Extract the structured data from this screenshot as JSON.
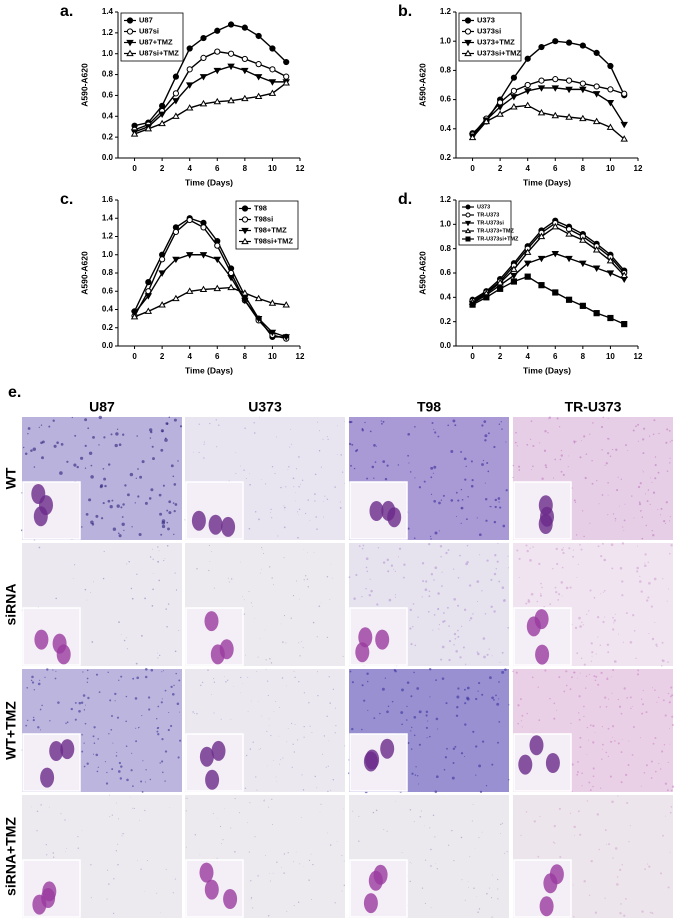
{
  "chart_data": [
    {
      "type": "line",
      "panel_label": "a.",
      "xlabel": "Time (Days)",
      "ylabel": "A590-A620",
      "x": [
        0,
        1,
        2,
        3,
        4,
        5,
        6,
        7,
        8,
        9,
        10,
        11
      ],
      "xlim": [
        -1.2,
        12
      ],
      "xticks": [
        0,
        2,
        4,
        6,
        8,
        10,
        12
      ],
      "ylim": [
        0,
        1.4
      ],
      "yticks": [
        {
          "value": 0,
          "label": "0.0"
        },
        0.2,
        0.4,
        0.6,
        0.8,
        {
          "value": 1,
          "label": "1.0"
        },
        1.2,
        1.4
      ],
      "legend": "top-left",
      "grid": false,
      "series": [
        {
          "name": "U87",
          "color": "#000000",
          "marker": "circle-filled",
          "values": [
            0.31,
            0.34,
            0.5,
            0.78,
            1.05,
            1.15,
            1.22,
            1.28,
            1.25,
            1.17,
            1.05,
            0.92
          ]
        },
        {
          "name": "U87si",
          "color": "#000000",
          "marker": "circle-open",
          "values": [
            0.27,
            0.32,
            0.45,
            0.62,
            0.85,
            0.96,
            1.02,
            1.0,
            0.95,
            0.9,
            0.85,
            0.78
          ]
        },
        {
          "name": "U87+TMZ",
          "color": "#000000",
          "marker": "triangle-filled",
          "values": [
            0.25,
            0.3,
            0.42,
            0.55,
            0.7,
            0.78,
            0.84,
            0.88,
            0.84,
            0.78,
            0.73,
            0.73
          ]
        },
        {
          "name": "U87si+TMZ",
          "color": "#000000",
          "marker": "triangle-open",
          "values": [
            0.23,
            0.28,
            0.33,
            0.4,
            0.48,
            0.52,
            0.54,
            0.55,
            0.57,
            0.59,
            0.62,
            0.72
          ]
        }
      ]
    },
    {
      "type": "line",
      "panel_label": "b.",
      "xlabel": "Time (Days)",
      "ylabel": "A590-A620",
      "x": [
        0,
        1,
        2,
        3,
        4,
        5,
        6,
        7,
        8,
        9,
        10,
        11
      ],
      "xlim": [
        -1.2,
        12
      ],
      "xticks": [
        0,
        2,
        4,
        6,
        8,
        10,
        12
      ],
      "ylim": [
        0.2,
        1.2
      ],
      "yticks": [
        0.2,
        0.4,
        0.6,
        0.8,
        {
          "value": 1,
          "label": "1.0"
        },
        1.2
      ],
      "legend": "top-left",
      "grid": false,
      "series": [
        {
          "name": "U373",
          "color": "#000000",
          "marker": "circle-filled",
          "values": [
            0.37,
            0.45,
            0.6,
            0.75,
            0.88,
            0.96,
            1.0,
            0.99,
            0.97,
            0.92,
            0.83,
            0.63
          ]
        },
        {
          "name": "U373si",
          "color": "#000000",
          "marker": "circle-open",
          "values": [
            0.36,
            0.47,
            0.58,
            0.66,
            0.7,
            0.73,
            0.74,
            0.73,
            0.71,
            0.69,
            0.67,
            0.64
          ]
        },
        {
          "name": "U373+TMZ",
          "color": "#000000",
          "marker": "triangle-filled",
          "values": [
            0.35,
            0.46,
            0.55,
            0.62,
            0.66,
            0.68,
            0.68,
            0.67,
            0.67,
            0.64,
            0.58,
            0.43
          ]
        },
        {
          "name": "U373si+TMZ",
          "color": "#000000",
          "marker": "triangle-open",
          "values": [
            0.34,
            0.45,
            0.5,
            0.55,
            0.56,
            0.51,
            0.49,
            0.48,
            0.47,
            0.45,
            0.41,
            0.33
          ]
        }
      ]
    },
    {
      "type": "line",
      "panel_label": "c.",
      "xlabel": "Time (Days)",
      "ylabel": "A590-A620",
      "x": [
        0,
        1,
        2,
        3,
        4,
        5,
        6,
        7,
        8,
        9,
        10,
        11
      ],
      "xlim": [
        -1.2,
        12
      ],
      "xticks": [
        0,
        2,
        4,
        6,
        8,
        10,
        12
      ],
      "ylim": [
        0,
        1.6
      ],
      "yticks": [
        {
          "value": 0,
          "label": "0.0"
        },
        0.2,
        0.4,
        0.6,
        0.8,
        {
          "value": 1,
          "label": "1.0"
        },
        1.2,
        1.4,
        1.6
      ],
      "legend": "top-right",
      "grid": false,
      "series": [
        {
          "name": "T98",
          "color": "#000000",
          "marker": "circle-filled",
          "values": [
            0.38,
            0.7,
            1.0,
            1.3,
            1.4,
            1.35,
            1.15,
            0.85,
            0.55,
            0.3,
            0.1,
            0.1
          ]
        },
        {
          "name": "T98si",
          "color": "#000000",
          "marker": "circle-open",
          "values": [
            0.33,
            0.6,
            0.95,
            1.25,
            1.38,
            1.3,
            1.1,
            0.8,
            0.5,
            0.28,
            0.12,
            0.08
          ]
        },
        {
          "name": "T98+TMZ",
          "color": "#000000",
          "marker": "triangle-filled",
          "values": [
            0.36,
            0.55,
            0.8,
            0.95,
            1.0,
            1.0,
            0.95,
            0.75,
            0.5,
            0.3,
            0.15,
            0.1
          ]
        },
        {
          "name": "T98si+TMZ",
          "color": "#000000",
          "marker": "triangle-open",
          "values": [
            0.32,
            0.38,
            0.45,
            0.52,
            0.6,
            0.62,
            0.63,
            0.64,
            0.58,
            0.52,
            0.47,
            0.45
          ]
        }
      ]
    },
    {
      "type": "line",
      "panel_label": "d.",
      "xlabel": "Time (Days)",
      "ylabel": "A590-A620",
      "x": [
        0,
        1,
        2,
        3,
        4,
        5,
        6,
        7,
        8,
        9,
        10,
        11
      ],
      "xlim": [
        -1.2,
        12
      ],
      "xticks": [
        0,
        2,
        4,
        6,
        8,
        10,
        12
      ],
      "ylim": [
        0,
        1.2
      ],
      "yticks": [
        {
          "value": 0,
          "label": "0.0"
        },
        0.2,
        0.4,
        0.6,
        0.8,
        {
          "value": 1,
          "label": "1.0"
        },
        1.2
      ],
      "legend": "top-left",
      "grid": false,
      "series": [
        {
          "name": "U373",
          "color": "#000000",
          "marker": "circle-filled",
          "values": [
            0.38,
            0.45,
            0.55,
            0.68,
            0.82,
            0.95,
            1.03,
            0.98,
            0.92,
            0.84,
            0.75,
            0.62
          ]
        },
        {
          "name": "TR-U373",
          "color": "#000000",
          "marker": "circle-open",
          "values": [
            0.37,
            0.44,
            0.53,
            0.66,
            0.8,
            0.93,
            1.01,
            0.96,
            0.9,
            0.82,
            0.73,
            0.6
          ]
        },
        {
          "name": "TR-U373si",
          "color": "#000000",
          "marker": "triangle-filled",
          "values": [
            0.35,
            0.42,
            0.5,
            0.58,
            0.68,
            0.72,
            0.76,
            0.72,
            0.68,
            0.64,
            0.6,
            0.55
          ]
        },
        {
          "name": "TR-U373+TMZ",
          "color": "#000000",
          "marker": "triangle-open",
          "values": [
            0.36,
            0.43,
            0.52,
            0.63,
            0.77,
            0.9,
            0.98,
            0.92,
            0.87,
            0.79,
            0.7,
            0.58
          ]
        },
        {
          "name": "TR-U373si+TMZ",
          "color": "#000000",
          "marker": "square-filled",
          "values": [
            0.34,
            0.4,
            0.47,
            0.53,
            0.57,
            0.5,
            0.44,
            0.38,
            0.33,
            0.27,
            0.23,
            0.18
          ]
        }
      ]
    }
  ],
  "image_panel": {
    "panel_label": "e.",
    "columns": [
      "U87",
      "U373",
      "T98",
      "TR-U373"
    ],
    "rows": [
      "WT",
      "siRNA",
      "WT+TMZ",
      "siRNA+TMZ"
    ]
  }
}
